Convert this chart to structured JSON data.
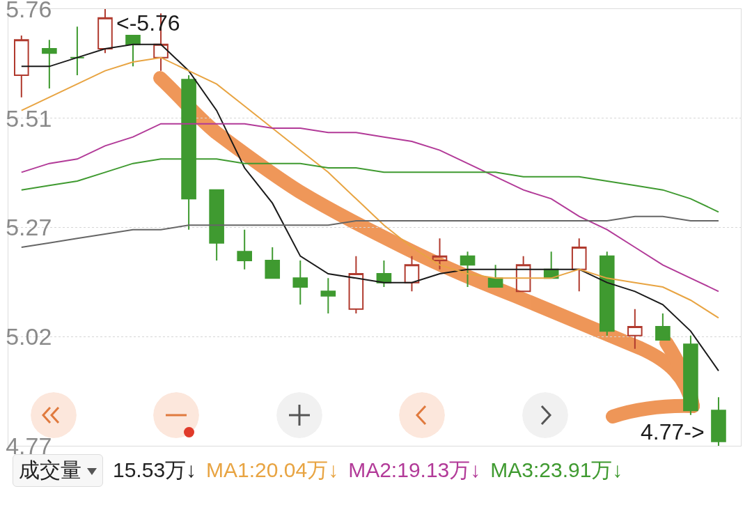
{
  "chart_data": {
    "type": "candlestick",
    "categories": [
      null,
      null,
      null,
      null,
      null,
      null,
      null,
      null,
      null,
      null,
      null,
      null,
      null,
      null,
      null,
      null,
      null,
      null,
      null,
      null,
      null,
      null,
      null,
      null,
      null,
      null
    ],
    "ohlc": [
      [
        5.61,
        5.7,
        5.56,
        5.69
      ],
      [
        5.67,
        5.69,
        5.58,
        5.66
      ],
      [
        5.65,
        5.72,
        5.61,
        5.65
      ],
      [
        5.67,
        5.76,
        5.66,
        5.74
      ],
      [
        5.7,
        5.7,
        5.63,
        5.68
      ],
      [
        5.65,
        5.75,
        5.62,
        5.68
      ],
      [
        5.6,
        5.61,
        5.26,
        5.33
      ],
      [
        5.35,
        5.35,
        5.19,
        5.23
      ],
      [
        5.21,
        5.26,
        5.17,
        5.19
      ],
      [
        5.19,
        5.22,
        5.15,
        5.15
      ],
      [
        5.15,
        5.19,
        5.09,
        5.13
      ],
      [
        5.12,
        5.15,
        5.07,
        5.11
      ],
      [
        5.08,
        5.2,
        5.07,
        5.16
      ],
      [
        5.16,
        5.19,
        5.13,
        5.14
      ],
      [
        5.14,
        5.2,
        5.12,
        5.18
      ],
      [
        5.19,
        5.24,
        5.17,
        5.2
      ],
      [
        5.2,
        5.21,
        5.13,
        5.18
      ],
      [
        5.15,
        5.18,
        5.13,
        5.13
      ],
      [
        5.12,
        5.2,
        5.12,
        5.18
      ],
      [
        5.17,
        5.21,
        5.15,
        5.15
      ],
      [
        5.17,
        5.24,
        5.12,
        5.22
      ],
      [
        5.2,
        5.21,
        5.02,
        5.03
      ],
      [
        5.02,
        5.08,
        4.99,
        5.04
      ],
      [
        5.04,
        5.07,
        5.01,
        5.01
      ],
      [
        5.0,
        5.02,
        4.84,
        4.85
      ],
      [
        4.85,
        4.88,
        4.77,
        4.78
      ]
    ],
    "series": [
      {
        "type": "line",
        "color": "#1a1a1a",
        "values": [
          5.63,
          5.63,
          5.65,
          5.67,
          5.68,
          5.68,
          5.62,
          5.53,
          5.4,
          5.32,
          5.2,
          5.16,
          5.15,
          5.14,
          5.14,
          5.16,
          5.17,
          5.17,
          5.17,
          5.17,
          5.17,
          5.14,
          5.12,
          5.09,
          5.03,
          4.94
        ]
      },
      {
        "type": "line",
        "color": "#e8a442",
        "values": [
          5.53,
          5.56,
          5.59,
          5.62,
          5.64,
          5.65,
          5.62,
          5.59,
          5.54,
          5.49,
          5.44,
          5.39,
          5.33,
          5.27,
          5.22,
          5.18,
          5.16,
          5.15,
          5.15,
          5.15,
          5.17,
          5.15,
          5.14,
          5.13,
          5.1,
          5.06
        ]
      },
      {
        "type": "line",
        "color": "#b23a98",
        "values": [
          5.39,
          5.41,
          5.42,
          5.45,
          5.47,
          5.5,
          5.5,
          5.5,
          5.5,
          5.49,
          5.49,
          5.48,
          5.48,
          5.47,
          5.46,
          5.44,
          5.41,
          5.38,
          5.35,
          5.33,
          5.29,
          5.26,
          5.22,
          5.18,
          5.15,
          5.12
        ]
      },
      {
        "type": "line",
        "color": "#3f9a30",
        "values": [
          5.35,
          5.36,
          5.37,
          5.39,
          5.41,
          5.42,
          5.42,
          5.42,
          5.41,
          5.41,
          5.41,
          5.4,
          5.4,
          5.39,
          5.39,
          5.39,
          5.39,
          5.39,
          5.38,
          5.38,
          5.38,
          5.37,
          5.36,
          5.35,
          5.33,
          5.3
        ]
      },
      {
        "type": "line",
        "color": "#666666",
        "values": [
          5.22,
          5.23,
          5.24,
          5.25,
          5.26,
          5.26,
          5.27,
          5.27,
          5.27,
          5.27,
          5.27,
          5.27,
          5.28,
          5.28,
          5.28,
          5.28,
          5.28,
          5.28,
          5.28,
          5.28,
          5.28,
          5.28,
          5.29,
          5.29,
          5.28,
          5.28
        ]
      }
    ],
    "ylim": [
      4.77,
      5.76
    ],
    "yticks": [
      5.76,
      {
        "value": 5.5125,
        "label": "5.51"
      },
      {
        "value": 5.265,
        "label": "5.27"
      },
      {
        "value": 5.0175,
        "label": "5.02"
      },
      4.77
    ],
    "grid": "y",
    "marker": "none",
    "line_style": "solid",
    "annotations": [
      "<-5.76",
      "4.77->",
      "成交量",
      "15.53万↓",
      "MA1:20.04万↓",
      "MA2:19.13万↓",
      "MA3:23.91万↓"
    ]
  }
}
